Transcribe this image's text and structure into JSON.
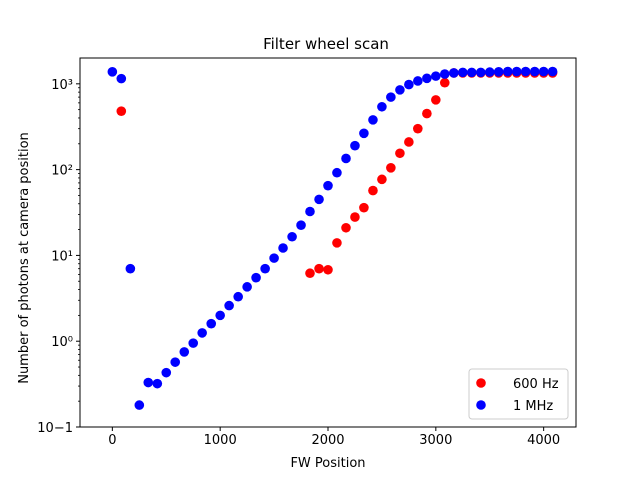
{
  "chart_data": {
    "type": "scatter",
    "title": "Filter wheel scan",
    "xlabel": "FW Position",
    "ylabel": "Number of photons at camera position",
    "xlim": [
      -300,
      4300
    ],
    "ylim": [
      0.1,
      2000
    ],
    "yscale": "log",
    "xticks": [
      0,
      1000,
      2000,
      3000,
      4000
    ],
    "xtick_labels": [
      "0",
      "1000",
      "2000",
      "3000",
      "4000"
    ],
    "yticks": [
      0.1,
      1,
      10,
      100,
      1000
    ],
    "ytick_labels": [
      "10−1",
      "10⁰",
      "10¹",
      "10²",
      "10³"
    ],
    "grid": false,
    "legend_position": "lower-right",
    "series": [
      {
        "name": "600 Hz",
        "color": "#ff0000",
        "x": [
          83,
          1833,
          1917,
          2000,
          2083,
          2167,
          2250,
          2333,
          2417,
          2500,
          2583,
          2667,
          2750,
          2833,
          2917,
          3000,
          3083,
          3167,
          3250,
          3333,
          3417,
          3500,
          3583,
          3667,
          3750,
          3833,
          3917,
          4000,
          4083
        ],
        "y": [
          480,
          6.2,
          7.0,
          6.8,
          14,
          21,
          28,
          36,
          57,
          77,
          105,
          155,
          210,
          300,
          450,
          650,
          1030,
          1340,
          1340,
          1340,
          1340,
          1340,
          1340,
          1340,
          1340,
          1340,
          1340,
          1340,
          1340
        ]
      },
      {
        "name": "1 MHz",
        "color": "#0000ff",
        "x": [
          0,
          83,
          167,
          250,
          333,
          417,
          500,
          583,
          667,
          750,
          833,
          917,
          1000,
          1083,
          1167,
          1250,
          1333,
          1417,
          1500,
          1583,
          1667,
          1750,
          1833,
          1917,
          2000,
          2083,
          2167,
          2250,
          2333,
          2417,
          2500,
          2583,
          2667,
          2750,
          2833,
          2917,
          3000,
          3083,
          3167,
          3250,
          3333,
          3417,
          3500,
          3583,
          3667,
          3750,
          3833,
          3917,
          4000,
          4083
        ],
        "y": [
          1380,
          1150,
          7.0,
          0.18,
          0.33,
          0.32,
          0.43,
          0.57,
          0.75,
          0.95,
          1.25,
          1.6,
          2.0,
          2.6,
          3.3,
          4.3,
          5.5,
          7.0,
          9.3,
          12.2,
          16.5,
          22.5,
          32.5,
          45,
          65,
          92,
          135,
          190,
          265,
          380,
          540,
          700,
          850,
          980,
          1080,
          1160,
          1230,
          1300,
          1340,
          1360,
          1360,
          1360,
          1370,
          1380,
          1390,
          1390,
          1390,
          1390,
          1390,
          1390
        ]
      }
    ]
  }
}
